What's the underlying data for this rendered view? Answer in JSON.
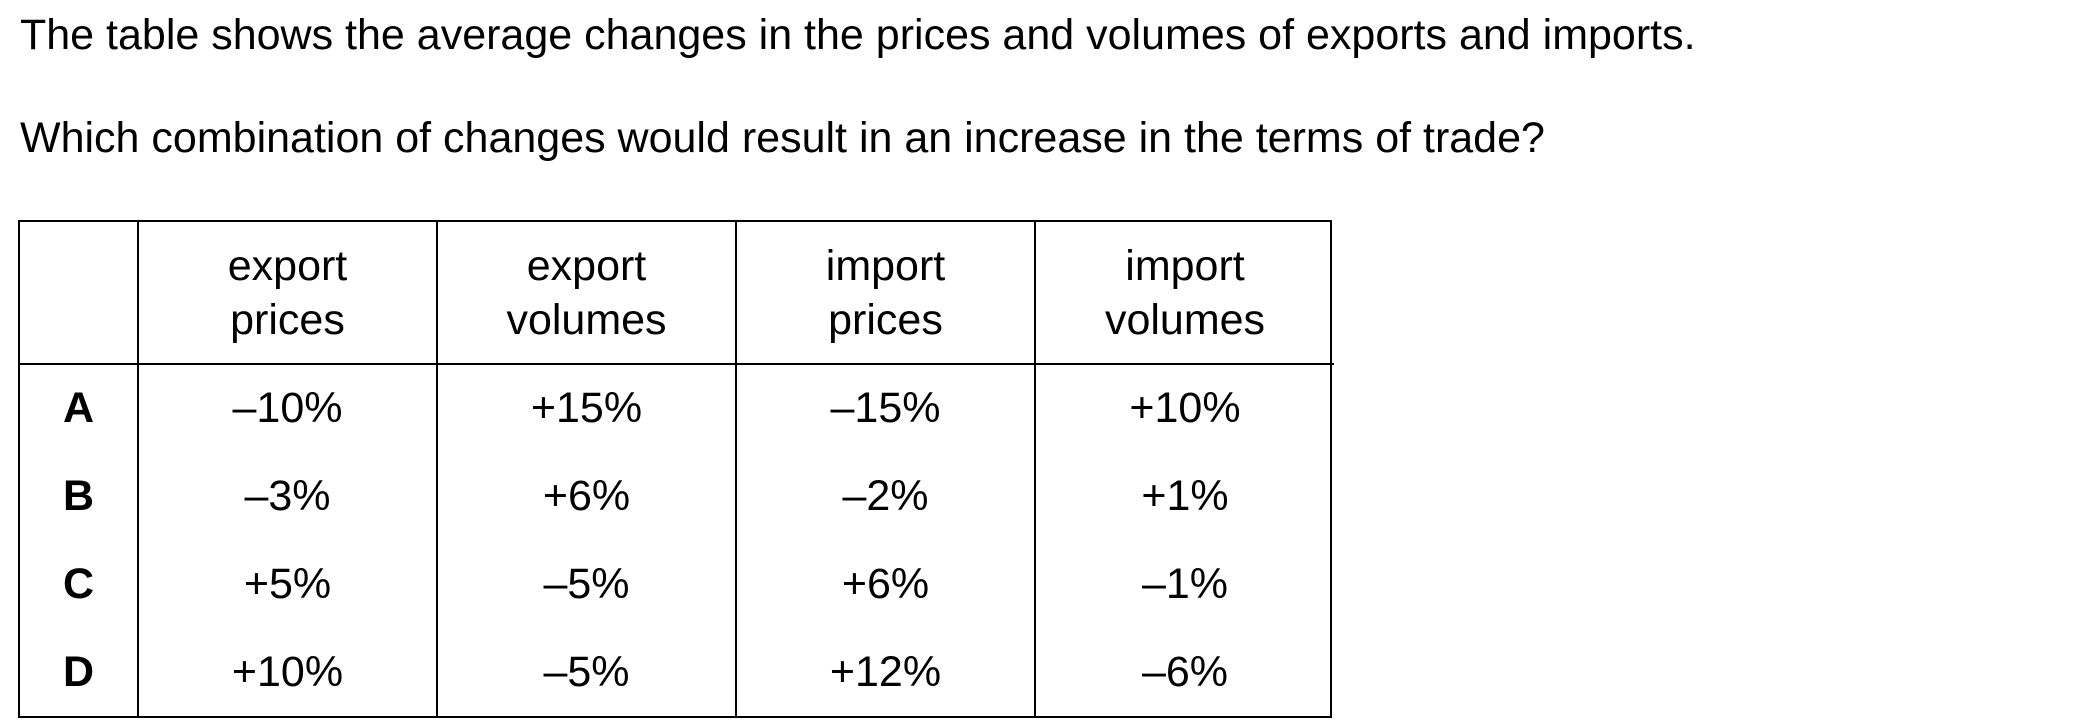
{
  "question": {
    "intro": "The table shows the average changes in the prices and volumes of exports and imports.",
    "prompt": "Which combination of changes would result in an increase in the terms of trade?"
  },
  "table": {
    "headers": [
      {
        "line1": "export",
        "line2": "prices"
      },
      {
        "line1": "export",
        "line2": "volumes"
      },
      {
        "line1": "import",
        "line2": "prices"
      },
      {
        "line1": "import",
        "line2": "volumes"
      }
    ],
    "rows": [
      {
        "label": "A",
        "cells": [
          "–10%",
          "+15%",
          "–15%",
          "+10%"
        ]
      },
      {
        "label": "B",
        "cells": [
          "–3%",
          "+6%",
          "–2%",
          "+1%"
        ]
      },
      {
        "label": "C",
        "cells": [
          "+5%",
          "–5%",
          "+6%",
          "–1%"
        ]
      },
      {
        "label": "D",
        "cells": [
          "+10%",
          "–5%",
          "+12%",
          "–6%"
        ]
      }
    ]
  }
}
